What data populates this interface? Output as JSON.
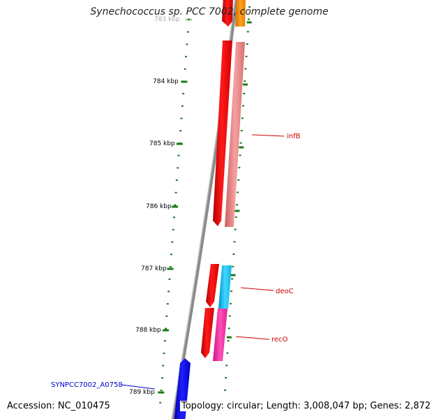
{
  "title": "Synechococcus sp. PCC 7002, complete genome",
  "footer": {
    "accession": "Accession: NC_010475",
    "summary": "Topology: circular; Length: 3,008,047 bp; Genes: 2,872"
  },
  "colors": {
    "tick": "#1a7a1a",
    "backbone": "#8a8a8a",
    "red": "#ff0000",
    "salmon": "#f08080",
    "orange": "#ff8c00",
    "cyan": "#1ec8ff",
    "pink": "#ff2fa0",
    "blue": "#0000e0",
    "label_red": "#cc0000",
    "label_blue": "#0000cc"
  },
  "ticks": [
    {
      "label": "783 kbp"
    },
    {
      "label": "784 kbp"
    },
    {
      "label": "785 kbp"
    },
    {
      "label": "786 kbp"
    },
    {
      "label": "787 kbp"
    },
    {
      "label": "788 kbp"
    },
    {
      "label": "789 kbp"
    }
  ],
  "genes": [
    {
      "name": "infB",
      "color": "salmon"
    },
    {
      "name": "deoC",
      "color": "cyan"
    },
    {
      "name": "recO",
      "color": "pink"
    },
    {
      "name": "SYNPCC7002_A0758",
      "color": "blue"
    }
  ]
}
